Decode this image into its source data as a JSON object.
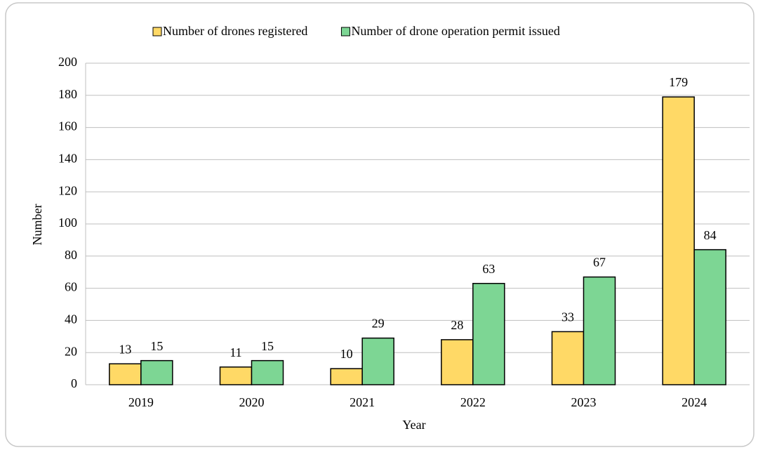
{
  "chart_data": {
    "type": "bar",
    "x_label": "Year",
    "y_label": "Number",
    "categories": [
      "2019",
      "2020",
      "2021",
      "2022",
      "2023",
      "2024"
    ],
    "series": [
      {
        "name": "Number of drones registered",
        "color": "#ffd966",
        "values": [
          13,
          11,
          10,
          28,
          33,
          179
        ]
      },
      {
        "name": "Number of drone operation permit issued",
        "color": "#7dd694",
        "values": [
          15,
          15,
          29,
          63,
          67,
          84
        ]
      }
    ],
    "ylim": [
      0,
      200
    ],
    "yticks": [
      0,
      20,
      40,
      60,
      80,
      100,
      120,
      140,
      160,
      180,
      200
    ],
    "grid": true,
    "legend": "top"
  }
}
